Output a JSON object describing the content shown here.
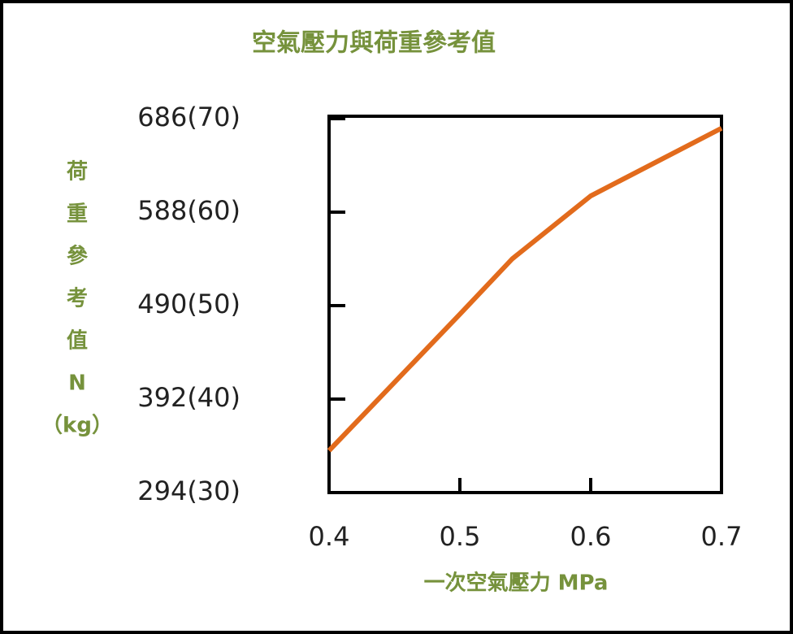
{
  "chart_data": {
    "type": "line",
    "title": "空氣壓力與荷重參考值",
    "ylabel_lines": [
      "荷",
      "重",
      "參",
      "考",
      "值",
      "N",
      "（kg）"
    ],
    "xlabel": "一次空氣壓力 MPa",
    "x": [
      0.4,
      0.5,
      0.54,
      0.6,
      0.7
    ],
    "series": [
      {
        "color": "#e26b1c",
        "values": [
          338,
          481,
          539,
          605,
          676
        ]
      }
    ],
    "xlim": [
      0.4,
      0.7
    ],
    "xticks": [
      0.4,
      0.5,
      0.6,
      0.7
    ],
    "ylim": [
      294,
      686
    ],
    "yticks": [
      {
        "value": 294,
        "label": "294(30)"
      },
      {
        "value": 392,
        "label": "392(40)"
      },
      {
        "value": 490,
        "label": "490(50)"
      },
      {
        "value": 588,
        "label": "588(60)"
      },
      {
        "value": 686,
        "label": "686(70)"
      }
    ],
    "label_color": "#76923c"
  }
}
